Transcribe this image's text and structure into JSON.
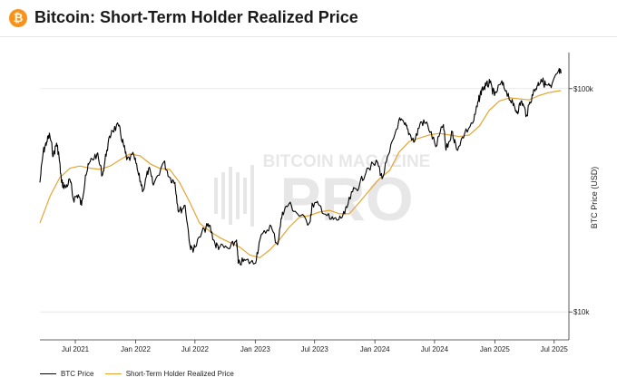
{
  "header": {
    "icon": "bitcoin-icon",
    "icon_glyph": "₿",
    "title": "Bitcoin: Short-Term Holder Realized Price"
  },
  "watermark": {
    "top": "BITCOIN MAGAZINE",
    "bottom": "PRO"
  },
  "colors": {
    "btc_price": "#000000",
    "sth_realized_price": "#e6a532",
    "accent": "#f7931a"
  },
  "chart_data": {
    "type": "line",
    "title": "Bitcoin: Short-Term Holder Realized Price",
    "xlabel": "",
    "ylabel": "BTC Price (USD)",
    "y_scale": "log",
    "ylim": [
      7500,
      145000
    ],
    "xlim": [
      "2021-03-15",
      "2025-08-15"
    ],
    "x_ticks": [
      "Jul 2021",
      "Jan 2022",
      "Jul 2022",
      "Jan 2023",
      "Jul 2023",
      "Jan 2024",
      "Jul 2024",
      "Jan 2025",
      "Jul 2025"
    ],
    "y_ticks": [
      {
        "value": 100000,
        "label": "$100k"
      },
      {
        "value": 10000,
        "label": "$10k"
      }
    ],
    "grid": "horizontal",
    "legend_position": "bottom-left",
    "series": [
      {
        "name": "BTC Price",
        "color": "#000000",
        "points": [
          [
            "2021-03-15",
            38000
          ],
          [
            "2021-03-25",
            52000
          ],
          [
            "2021-04-05",
            58000
          ],
          [
            "2021-04-14",
            62000
          ],
          [
            "2021-04-25",
            50000
          ],
          [
            "2021-05-05",
            57000
          ],
          [
            "2021-05-12",
            50000
          ],
          [
            "2021-05-20",
            38000
          ],
          [
            "2021-06-01",
            36000
          ],
          [
            "2021-06-15",
            39000
          ],
          [
            "2021-06-25",
            32000
          ],
          [
            "2021-07-10",
            33500
          ],
          [
            "2021-07-20",
            30000
          ],
          [
            "2021-08-01",
            41000
          ],
          [
            "2021-08-15",
            47000
          ],
          [
            "2021-09-05",
            51000
          ],
          [
            "2021-09-22",
            41000
          ],
          [
            "2021-10-05",
            53000
          ],
          [
            "2021-10-20",
            65000
          ],
          [
            "2021-11-10",
            68000
          ],
          [
            "2021-11-25",
            56000
          ],
          [
            "2021-12-05",
            48000
          ],
          [
            "2021-12-27",
            50000
          ],
          [
            "2022-01-10",
            41000
          ],
          [
            "2022-01-24",
            35000
          ],
          [
            "2022-02-10",
            44000
          ],
          [
            "2022-02-24",
            37000
          ],
          [
            "2022-03-28",
            47000
          ],
          [
            "2022-04-15",
            40000
          ],
          [
            "2022-05-01",
            38000
          ],
          [
            "2022-05-12",
            28000
          ],
          [
            "2022-06-01",
            30000
          ],
          [
            "2022-06-18",
            19000
          ],
          [
            "2022-07-01",
            19500
          ],
          [
            "2022-07-30",
            23500
          ],
          [
            "2022-08-14",
            24500
          ],
          [
            "2022-09-01",
            20000
          ],
          [
            "2022-09-15",
            19500
          ],
          [
            "2022-10-15",
            19200
          ],
          [
            "2022-11-05",
            21000
          ],
          [
            "2022-11-10",
            16500
          ],
          [
            "2022-12-01",
            17000
          ],
          [
            "2022-12-31",
            16500
          ],
          [
            "2023-01-15",
            21000
          ],
          [
            "2023-02-15",
            24500
          ],
          [
            "2023-03-10",
            20000
          ],
          [
            "2023-03-25",
            28000
          ],
          [
            "2023-04-14",
            30500
          ],
          [
            "2023-05-10",
            27500
          ],
          [
            "2023-06-15",
            25000
          ],
          [
            "2023-06-25",
            30500
          ],
          [
            "2023-07-15",
            30000
          ],
          [
            "2023-08-17",
            26000
          ],
          [
            "2023-09-10",
            25800
          ],
          [
            "2023-10-01",
            27500
          ],
          [
            "2023-10-25",
            34500
          ],
          [
            "2023-11-15",
            37000
          ],
          [
            "2023-12-08",
            44000
          ],
          [
            "2024-01-10",
            46500
          ],
          [
            "2024-01-23",
            39500
          ],
          [
            "2024-02-15",
            52000
          ],
          [
            "2024-03-14",
            72000
          ],
          [
            "2024-04-01",
            69000
          ],
          [
            "2024-04-15",
            63000
          ],
          [
            "2024-05-01",
            58000
          ],
          [
            "2024-05-20",
            71000
          ],
          [
            "2024-06-10",
            69000
          ],
          [
            "2024-07-05",
            55000
          ],
          [
            "2024-07-28",
            69000
          ],
          [
            "2024-08-05",
            53000
          ],
          [
            "2024-08-25",
            64000
          ],
          [
            "2024-09-06",
            53500
          ],
          [
            "2024-10-01",
            63000
          ],
          [
            "2024-10-29",
            72000
          ],
          [
            "2024-11-12",
            88000
          ],
          [
            "2024-11-22",
            99000
          ],
          [
            "2024-12-05",
            103000
          ],
          [
            "2024-12-17",
            106000
          ],
          [
            "2024-12-31",
            93000
          ],
          [
            "2025-01-20",
            106000
          ],
          [
            "2025-02-05",
            98000
          ],
          [
            "2025-02-26",
            84000
          ],
          [
            "2025-03-10",
            79000
          ],
          [
            "2025-03-24",
            88000
          ],
          [
            "2025-04-08",
            76000
          ],
          [
            "2025-04-25",
            94000
          ],
          [
            "2025-05-10",
            103000
          ],
          [
            "2025-05-22",
            110000
          ],
          [
            "2025-06-05",
            104000
          ],
          [
            "2025-06-22",
            101000
          ],
          [
            "2025-07-14",
            120000
          ],
          [
            "2025-07-22",
            117000
          ]
        ]
      },
      {
        "name": "Short-Term Holder Realized Price",
        "color": "#e6a532",
        "points": [
          [
            "2021-03-15",
            25000
          ],
          [
            "2021-04-15",
            33000
          ],
          [
            "2021-05-15",
            40000
          ],
          [
            "2021-06-15",
            44000
          ],
          [
            "2021-07-15",
            45000
          ],
          [
            "2021-08-15",
            44000
          ],
          [
            "2021-09-15",
            43500
          ],
          [
            "2021-10-15",
            45000
          ],
          [
            "2021-11-15",
            48000
          ],
          [
            "2021-12-15",
            51000
          ],
          [
            "2022-01-15",
            50000
          ],
          [
            "2022-02-15",
            46000
          ],
          [
            "2022-03-15",
            44000
          ],
          [
            "2022-04-15",
            43500
          ],
          [
            "2022-05-15",
            38000
          ],
          [
            "2022-06-15",
            31000
          ],
          [
            "2022-07-15",
            25000
          ],
          [
            "2022-08-15",
            23000
          ],
          [
            "2022-09-15",
            21500
          ],
          [
            "2022-10-15",
            20500
          ],
          [
            "2022-11-15",
            19500
          ],
          [
            "2022-12-15",
            18000
          ],
          [
            "2023-01-15",
            17500
          ],
          [
            "2023-02-15",
            19000
          ],
          [
            "2023-03-15",
            21000
          ],
          [
            "2023-04-15",
            24000
          ],
          [
            "2023-05-15",
            26500
          ],
          [
            "2023-06-15",
            27000
          ],
          [
            "2023-07-15",
            28000
          ],
          [
            "2023-08-15",
            28500
          ],
          [
            "2023-09-15",
            27500
          ],
          [
            "2023-10-15",
            27500
          ],
          [
            "2023-11-15",
            31000
          ],
          [
            "2023-12-15",
            35000
          ],
          [
            "2024-01-15",
            39500
          ],
          [
            "2024-02-15",
            43000
          ],
          [
            "2024-03-15",
            52000
          ],
          [
            "2024-04-15",
            58000
          ],
          [
            "2024-05-15",
            60000
          ],
          [
            "2024-06-15",
            62000
          ],
          [
            "2024-07-15",
            63000
          ],
          [
            "2024-08-15",
            62000
          ],
          [
            "2024-09-15",
            61000
          ],
          [
            "2024-10-15",
            62000
          ],
          [
            "2024-11-15",
            68000
          ],
          [
            "2024-12-15",
            80000
          ],
          [
            "2025-01-15",
            88000
          ],
          [
            "2025-02-15",
            91000
          ],
          [
            "2025-03-15",
            90000
          ],
          [
            "2025-04-15",
            89000
          ],
          [
            "2025-05-15",
            93000
          ],
          [
            "2025-06-15",
            96000
          ],
          [
            "2025-07-22",
            98000
          ]
        ]
      }
    ]
  },
  "legend": [
    {
      "label": "BTC Price",
      "color": "#000000"
    },
    {
      "label": "Short-Term Holder Realized Price",
      "color": "#e6a532"
    }
  ]
}
